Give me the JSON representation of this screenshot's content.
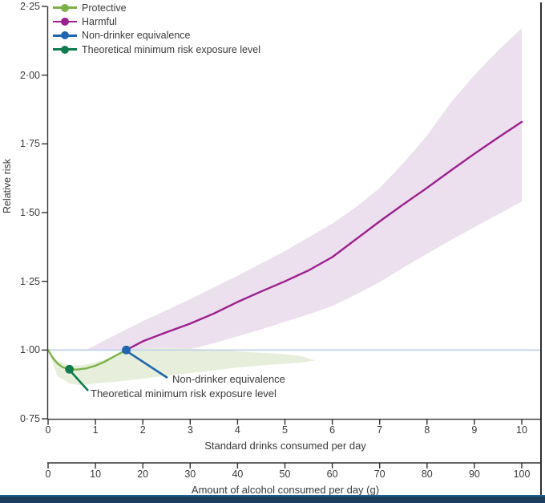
{
  "chart_data": {
    "type": "line",
    "ylabel": "Relative risk",
    "xlabel_drinks": "Standard drinks consumed per day",
    "xlabel_grams": "Amount of alcohol consumed per day (g)",
    "ylim": [
      0.75,
      2.25
    ],
    "xlim_drinks": [
      0,
      10
    ],
    "xlim_grams": [
      0,
      100
    ],
    "grid": false,
    "legend_position": "top-left",
    "y_ticks": [
      "0·75",
      "1·00",
      "1·25",
      "1·50",
      "1·75",
      "2·00",
      "2·25"
    ],
    "y_tick_values": [
      0.75,
      1.0,
      1.25,
      1.5,
      1.75,
      2.0,
      2.25
    ],
    "x_ticks_drinks": [
      "0",
      "1",
      "2",
      "3",
      "4",
      "5",
      "6",
      "7",
      "8",
      "9",
      "10"
    ],
    "x_ticks_grams": [
      "0",
      "10",
      "20",
      "30",
      "40",
      "50",
      "60",
      "70",
      "80",
      "90",
      "100"
    ],
    "reference_line": {
      "y": 1.0,
      "color": "#c7d6e8"
    },
    "series": [
      {
        "name": "Protective",
        "color": "#7db24b",
        "x": [
          0,
          0.1,
          0.2,
          0.3,
          0.45,
          0.6,
          0.8,
          1.0,
          1.2,
          1.4,
          1.65
        ],
        "y": [
          1.0,
          0.971,
          0.951,
          0.938,
          0.93,
          0.929,
          0.933,
          0.943,
          0.958,
          0.977,
          1.0
        ]
      },
      {
        "name": "Harmful",
        "color": "#9c1f8f",
        "x": [
          1.65,
          2,
          2.5,
          3,
          3.5,
          4,
          4.5,
          5,
          5.5,
          6,
          6.5,
          7,
          7.5,
          8,
          8.5,
          9,
          9.5,
          10
        ],
        "y": [
          1.0,
          1.032,
          1.065,
          1.096,
          1.133,
          1.175,
          1.213,
          1.25,
          1.29,
          1.338,
          1.403,
          1.468,
          1.53,
          1.59,
          1.653,
          1.714,
          1.773,
          1.83
        ]
      }
    ],
    "bands": [
      {
        "name": "harmful-ci",
        "color": "#ecdfee",
        "x": [
          0.8,
          1,
          1.5,
          2,
          2.5,
          3,
          3.5,
          4,
          4.5,
          5,
          5.5,
          6,
          6.5,
          7,
          7.5,
          8,
          8.5,
          9,
          9.5,
          10
        ],
        "upper": [
          1.0,
          1.018,
          1.062,
          1.105,
          1.145,
          1.185,
          1.228,
          1.27,
          1.315,
          1.36,
          1.41,
          1.46,
          1.52,
          1.59,
          1.68,
          1.78,
          1.9,
          2.0,
          2.09,
          2.17
        ],
        "lower": [
          1.0,
          0.998,
          0.996,
          0.996,
          0.998,
          1.003,
          1.025,
          1.05,
          1.075,
          1.103,
          1.13,
          1.16,
          1.202,
          1.247,
          1.3,
          1.35,
          1.4,
          1.447,
          1.494,
          1.54
        ]
      },
      {
        "name": "protective-ci",
        "color": "#e7efdc",
        "x": [
          0,
          0.2,
          0.45,
          0.7,
          1.0,
          1.5,
          2,
          2.5,
          3,
          3.5,
          4,
          4.5,
          5,
          5.3,
          5.65
        ],
        "upper": [
          1.0,
          0.96,
          0.945,
          0.944,
          0.955,
          0.985,
          1.005,
          1.008,
          1.005,
          1.0,
          0.995,
          0.99,
          0.985,
          0.98,
          0.962
        ],
        "lower": [
          1.0,
          0.905,
          0.878,
          0.872,
          0.878,
          0.886,
          0.896,
          0.906,
          0.916,
          0.926,
          0.936,
          0.944,
          0.95,
          0.954,
          0.962
        ]
      }
    ],
    "points": [
      {
        "name": "Non-drinker equivalence",
        "x": 1.65,
        "y": 1.0,
        "color": "#1f66ae"
      },
      {
        "name": "Theoretical minimum risk exposure level",
        "x": 0.45,
        "y": 0.93,
        "color": "#0f7b4f"
      }
    ],
    "legend": [
      {
        "label": "Protective",
        "color": "#7db24b"
      },
      {
        "label": "Harmful",
        "color": "#9c1f8f"
      },
      {
        "label": "Non-drinker equivalence",
        "color": "#1f66ae"
      },
      {
        "label": "Theoretical minimum risk exposure level",
        "color": "#0f7b4f"
      }
    ],
    "annotations": [
      {
        "text": "Non-drinker equivalence",
        "leader_color": "#1f66ae"
      },
      {
        "text": "Theoretical minimum risk exposure level",
        "leader_color": "#0f7b4f"
      }
    ]
  },
  "colors": {
    "axis": "#333333",
    "text": "#3a3a3a",
    "frame_border": "#2e2e2e",
    "bottom_bar": "#1d3d5a",
    "bottom_bar_edge": "#1f5f94",
    "background": "#ffffff"
  }
}
